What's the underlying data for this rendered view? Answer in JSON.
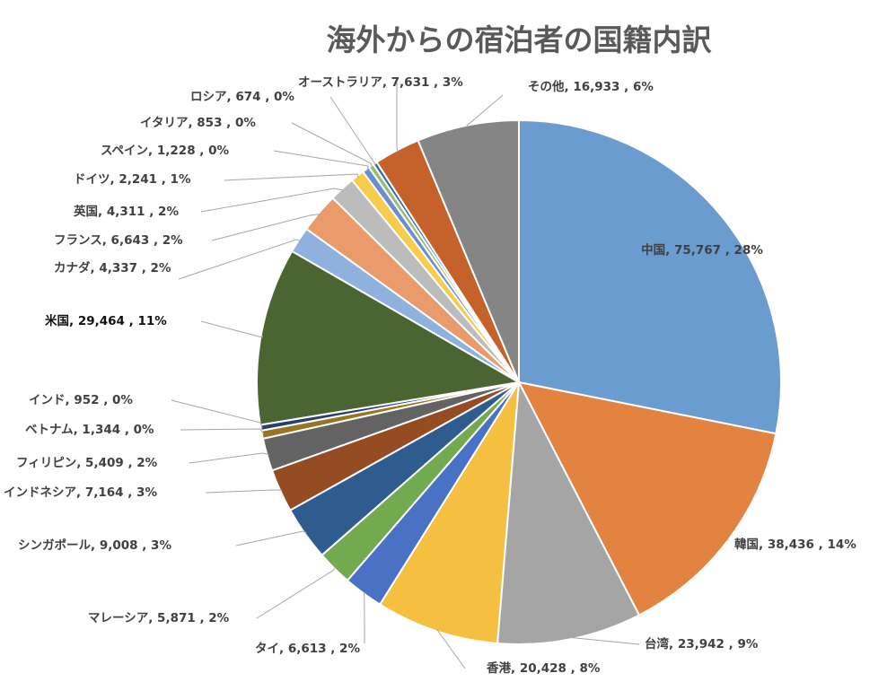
{
  "chart_data": {
    "type": "pie",
    "title": "海外からの宿泊者の国籍内訳",
    "start_angle_deg": 0,
    "direction": "clockwise",
    "slices": [
      {
        "name": "中国",
        "value": 75767,
        "percent": "28%",
        "color": "#6a9ccf",
        "label_name": "中国",
        "label_value": "75,767",
        "label_mode": "inside"
      },
      {
        "name": "韓国",
        "value": 38436,
        "percent": "14%",
        "color": "#e28342",
        "label_name": "韓国",
        "label_value": "38,436",
        "label_mode": "outside"
      },
      {
        "name": "台湾",
        "value": 23942,
        "percent": "9%",
        "color": "#a5a5a5",
        "label_name": "台湾",
        "label_value": "23,942",
        "label_mode": "outside"
      },
      {
        "name": "香港",
        "value": 20428,
        "percent": "8%",
        "color": "#f5bf41",
        "label_name": "香港",
        "label_value": "20,428",
        "label_mode": "outside"
      },
      {
        "name": "タイ",
        "value": 6613,
        "percent": "2%",
        "color": "#4a72c4",
        "label_name": "タイ",
        "label_value": "6,613",
        "label_mode": "outside"
      },
      {
        "name": "マレーシア",
        "value": 5871,
        "percent": "2%",
        "color": "#72aa4f",
        "label_name": "マレーシア",
        "label_value": "5,871",
        "label_mode": "outside"
      },
      {
        "name": "シンガポール",
        "value": 9008,
        "percent": "3%",
        "color": "#2f5c8f",
        "label_name": "シンガポール",
        "label_value": "9,008",
        "label_mode": "outside"
      },
      {
        "name": "インドネシア",
        "value": 7164,
        "percent": "3%",
        "color": "#954c22",
        "label_name": "インドネシア",
        "label_value": "7,164",
        "label_mode": "outside"
      },
      {
        "name": "フィリピン",
        "value": 5409,
        "percent": "2%",
        "color": "#636363",
        "label_name": "フィリピン",
        "label_value": "5,409",
        "label_mode": "outside"
      },
      {
        "name": "ベトナム",
        "value": 1344,
        "percent": "0%",
        "color": "#987520",
        "label_name": "ベトナム",
        "label_value": "1,344",
        "label_mode": "outside"
      },
      {
        "name": "インド",
        "value": 952,
        "percent": "0%",
        "color": "#263f6e",
        "label_name": "インド",
        "label_value": " 952",
        "label_mode": "outside"
      },
      {
        "name": "米国",
        "value": 29464,
        "percent": "11%",
        "color": "#4a6531",
        "label_name": "米国",
        "label_value": "29,464",
        "label_mode": "outside",
        "dark": true
      },
      {
        "name": "カナダ",
        "value": 4337,
        "percent": "2%",
        "color": "#8fb1dd",
        "label_name": "カナダ",
        "label_value": "4,337",
        "label_mode": "outside"
      },
      {
        "name": "フランス",
        "value": 6643,
        "percent": "2%",
        "color": "#ea9b6c",
        "label_name": "フランス",
        "label_value": "6,643",
        "label_mode": "outside"
      },
      {
        "name": "英国",
        "value": 4311,
        "percent": "2%",
        "color": "#bcbcbc",
        "label_name": "英国",
        "label_value": "4,311",
        "label_mode": "outside"
      },
      {
        "name": "ドイツ",
        "value": 2241,
        "percent": "1%",
        "color": "#f7cc4c",
        "label_name": "ドイツ",
        "label_value": "2,241",
        "label_mode": "outside"
      },
      {
        "name": "スペイン",
        "value": 1228,
        "percent": "0%",
        "color": "#6b8fce",
        "label_name": "スペイン",
        "label_value": "1,228",
        "label_mode": "outside"
      },
      {
        "name": "イタリア",
        "value": 853,
        "percent": "0%",
        "color": "#92bf6b",
        "label_name": "イタリア",
        "label_value": "853",
        "label_mode": "outside"
      },
      {
        "name": "ロシア",
        "value": 674,
        "percent": "0%",
        "color": "#3a6aa3",
        "label_name": "ロシア",
        "label_value": "674",
        "label_mode": "outside"
      },
      {
        "name": "オーストラリア",
        "value": 7631,
        "percent": "3%",
        "color": "#c5622c",
        "label_name": "オーストラリア",
        "label_value": "7,631",
        "label_mode": "outside"
      },
      {
        "name": "その他",
        "value": 16933,
        "percent": "6%",
        "color": "#858585",
        "label_name": "その他",
        "label_value": "16,933",
        "label_mode": "outside"
      }
    ]
  }
}
